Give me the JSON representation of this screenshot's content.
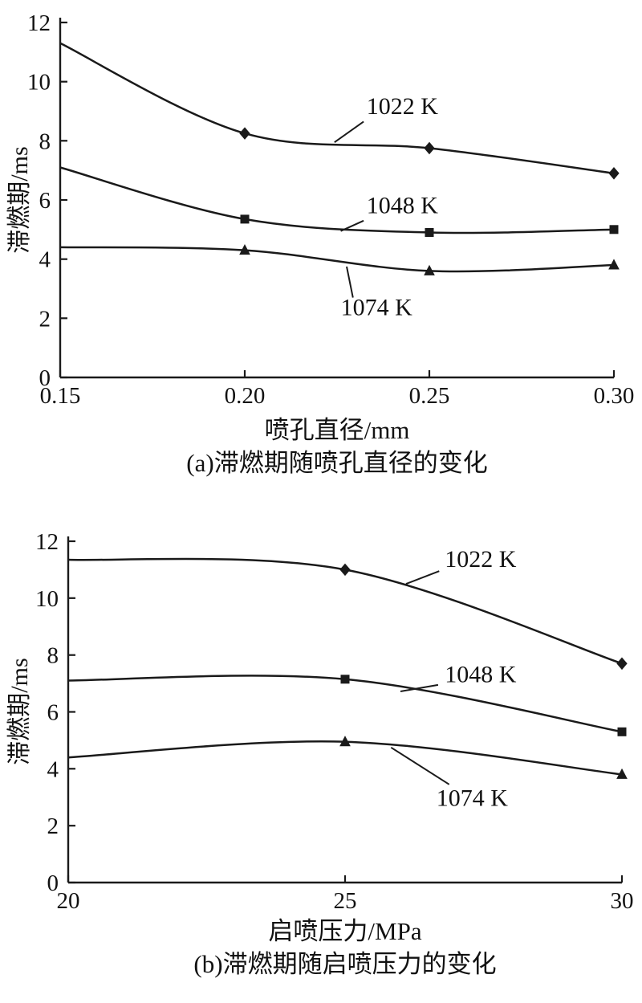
{
  "chart_data": [
    {
      "type": "line",
      "title": "",
      "xlabel": "喷孔直径/mm",
      "ylabel": "滞燃期/ms",
      "caption": "(a)滞燃期随喷孔直径的变化",
      "xlim": [
        0.15,
        0.3
      ],
      "ylim": [
        0,
        12
      ],
      "grid": false,
      "legend_position": "inline-annotations",
      "line_color": "#1a1a1a",
      "x_ticks": [
        {
          "v": 0.15,
          "label": "0.15"
        },
        {
          "v": 0.2,
          "label": "0.20"
        },
        {
          "v": 0.25,
          "label": "0.25"
        },
        {
          "v": 0.3,
          "label": "0.30"
        }
      ],
      "y_ticks": [
        {
          "v": 0,
          "label": "0"
        },
        {
          "v": 2,
          "label": "2"
        },
        {
          "v": 4,
          "label": "4"
        },
        {
          "v": 6,
          "label": "6"
        },
        {
          "v": 8,
          "label": "8"
        },
        {
          "v": 10,
          "label": "10"
        },
        {
          "v": 12,
          "label": "12"
        }
      ],
      "series": [
        {
          "name": "1022 K",
          "marker": "diamond",
          "points": [
            [
              0.15,
              11.3
            ],
            [
              0.2,
              8.25
            ],
            [
              0.25,
              7.75
            ],
            [
              0.3,
              6.9
            ]
          ]
        },
        {
          "name": "1048 K",
          "marker": "square",
          "points": [
            [
              0.15,
              7.1
            ],
            [
              0.2,
              5.35
            ],
            [
              0.25,
              4.9
            ],
            [
              0.3,
              5.0
            ]
          ]
        },
        {
          "name": "1074 K",
          "marker": "triangle",
          "points": [
            [
              0.15,
              4.4
            ],
            [
              0.2,
              4.3
            ],
            [
              0.25,
              3.6
            ],
            [
              0.3,
              3.8
            ]
          ]
        }
      ],
      "annotations": [
        {
          "text": "1022 K",
          "tx": 0.233,
          "ty": 8.9,
          "line": [
            [
              0.2322,
              8.65
            ],
            [
              0.2243,
              7.95
            ]
          ]
        },
        {
          "text": "1048 K",
          "tx": 0.233,
          "ty": 5.55,
          "line": [
            [
              0.2322,
              5.3
            ],
            [
              0.226,
              4.95
            ]
          ]
        },
        {
          "text": "1074 K",
          "tx": 0.226,
          "ty": 2.1,
          "line": [
            [
              0.2293,
              2.7
            ],
            [
              0.2276,
              3.75
            ]
          ]
        }
      ]
    },
    {
      "type": "line",
      "title": "",
      "xlabel": "启喷压力/MPa",
      "ylabel": "滞燃期/ms",
      "caption": "(b)滞燃期随启喷压力的变化",
      "xlim": [
        20,
        30
      ],
      "ylim": [
        0,
        12
      ],
      "grid": false,
      "legend_position": "inline-annotations",
      "line_color": "#1a1a1a",
      "x_ticks": [
        {
          "v": 20,
          "label": "20"
        },
        {
          "v": 25,
          "label": "25"
        },
        {
          "v": 30,
          "label": "30"
        }
      ],
      "y_ticks": [
        {
          "v": 0,
          "label": "0"
        },
        {
          "v": 2,
          "label": "2"
        },
        {
          "v": 4,
          "label": "4"
        },
        {
          "v": 6,
          "label": "6"
        },
        {
          "v": 8,
          "label": "8"
        },
        {
          "v": 10,
          "label": "10"
        },
        {
          "v": 12,
          "label": "12"
        }
      ],
      "series": [
        {
          "name": "1022 K",
          "marker": "diamond",
          "points": [
            [
              20,
              11.35
            ],
            [
              25,
              11.0
            ],
            [
              30,
              7.7
            ]
          ]
        },
        {
          "name": "1048 K",
          "marker": "square",
          "points": [
            [
              20,
              7.1
            ],
            [
              25,
              7.15
            ],
            [
              30,
              5.3
            ]
          ]
        },
        {
          "name": "1074 K",
          "marker": "triangle",
          "points": [
            [
              20,
              4.4
            ],
            [
              25,
              4.95
            ],
            [
              30,
              3.8
            ]
          ]
        }
      ],
      "annotations": [
        {
          "text": "1022 K",
          "tx": 26.8,
          "ty": 11.1,
          "line": [
            [
              26.7,
              10.95
            ],
            [
              26.1,
              10.5
            ]
          ]
        },
        {
          "text": "1048 K",
          "tx": 26.8,
          "ty": 7.05,
          "line": [
            [
              26.68,
              6.95
            ],
            [
              26.0,
              6.72
            ]
          ]
        },
        {
          "text": "1074 K",
          "tx": 26.65,
          "ty": 2.7,
          "line": [
            [
              26.88,
              3.45
            ],
            [
              25.83,
              4.75
            ]
          ]
        }
      ]
    }
  ]
}
